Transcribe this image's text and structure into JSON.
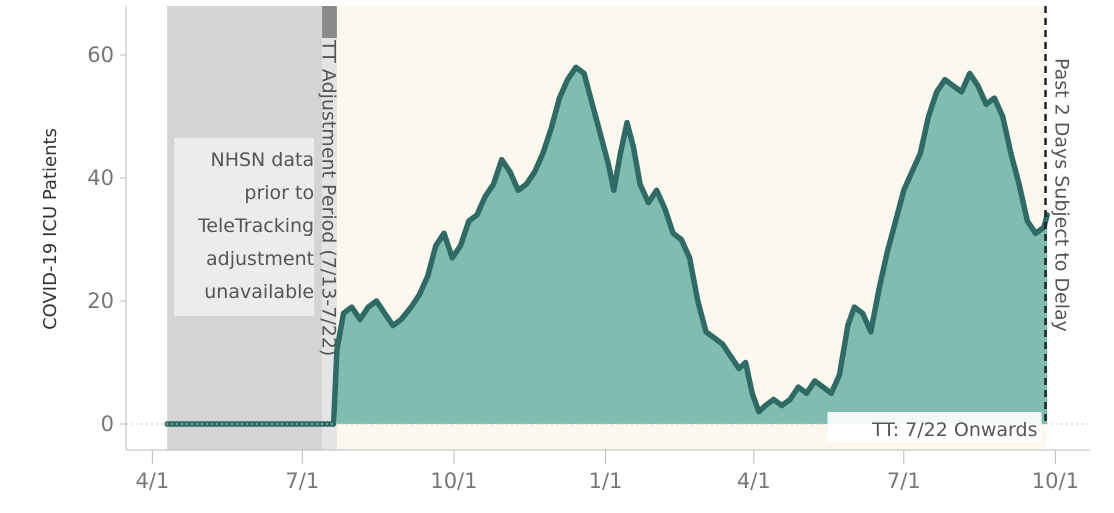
{
  "chart_data": {
    "type": "area",
    "title": "",
    "ylabel": "COVID-19 ICU Patients",
    "xlabel": "",
    "ylim": [
      0,
      65
    ],
    "x_range": [
      "2020-03-16",
      "2021-10-22"
    ],
    "grid": false,
    "y_ticks": [
      0,
      20,
      40,
      60
    ],
    "x_ticks": [
      {
        "date": "2020-04-01",
        "label": "4/1"
      },
      {
        "date": "2020-07-01",
        "label": "7/1"
      },
      {
        "date": "2020-10-01",
        "label": "10/1"
      },
      {
        "date": "2021-01-01",
        "label": "1/1"
      },
      {
        "date": "2021-04-01",
        "label": "4/1"
      },
      {
        "date": "2021-07-01",
        "label": "7/1"
      },
      {
        "date": "2021-10-01",
        "label": "10/1"
      }
    ],
    "regions": [
      {
        "name": "nhsn",
        "start": "2020-04-10",
        "end": "2020-07-13",
        "label_lines": [
          "NHSN data",
          "prior to",
          "TeleTracking",
          "adjustment",
          "unavailable"
        ]
      },
      {
        "name": "adjustment",
        "start": "2020-07-13",
        "end": "2020-07-22",
        "label": "TT Adjustment Period (7/13-7/22)"
      },
      {
        "name": "tt-onwards",
        "start": "2020-07-22",
        "end": "2021-09-25",
        "label": "TT: 7/22 Onwards"
      }
    ],
    "delay_marker": {
      "date": "2021-09-25",
      "label": "Past 2 Days Subject to Delay"
    },
    "series": [
      {
        "kind": "rolling-average",
        "points": [
          [
            "2020-04-10",
            0
          ],
          [
            "2020-07-20",
            0
          ],
          [
            "2020-07-22",
            12
          ],
          [
            "2020-07-26",
            18
          ],
          [
            "2020-07-31",
            19
          ],
          [
            "2020-08-05",
            17
          ],
          [
            "2020-08-10",
            19
          ],
          [
            "2020-08-15",
            20
          ],
          [
            "2020-08-20",
            18
          ],
          [
            "2020-08-25",
            16
          ],
          [
            "2020-08-30",
            17
          ],
          [
            "2020-09-05",
            19
          ],
          [
            "2020-09-10",
            21
          ],
          [
            "2020-09-15",
            24
          ],
          [
            "2020-09-20",
            29
          ],
          [
            "2020-09-25",
            31
          ],
          [
            "2020-09-30",
            27
          ],
          [
            "2020-10-05",
            29
          ],
          [
            "2020-10-10",
            33
          ],
          [
            "2020-10-15",
            34
          ],
          [
            "2020-10-20",
            37
          ],
          [
            "2020-10-25",
            39
          ],
          [
            "2020-10-30",
            43
          ],
          [
            "2020-11-04",
            41
          ],
          [
            "2020-11-09",
            38
          ],
          [
            "2020-11-14",
            39
          ],
          [
            "2020-11-19",
            41
          ],
          [
            "2020-11-24",
            44
          ],
          [
            "2020-11-29",
            48
          ],
          [
            "2020-12-04",
            53
          ],
          [
            "2020-12-09",
            56
          ],
          [
            "2020-12-14",
            58
          ],
          [
            "2020-12-19",
            57
          ],
          [
            "2020-12-24",
            52
          ],
          [
            "2020-12-29",
            47
          ],
          [
            "2021-01-03",
            42
          ],
          [
            "2021-01-06",
            38
          ],
          [
            "2021-01-10",
            44
          ],
          [
            "2021-01-14",
            49
          ],
          [
            "2021-01-18",
            45
          ],
          [
            "2021-01-22",
            39
          ],
          [
            "2021-01-27",
            36
          ],
          [
            "2021-02-01",
            38
          ],
          [
            "2021-02-06",
            35
          ],
          [
            "2021-02-11",
            31
          ],
          [
            "2021-02-16",
            30
          ],
          [
            "2021-02-21",
            27
          ],
          [
            "2021-02-26",
            20
          ],
          [
            "2021-03-03",
            15
          ],
          [
            "2021-03-08",
            14
          ],
          [
            "2021-03-13",
            13
          ],
          [
            "2021-03-18",
            11
          ],
          [
            "2021-03-23",
            9
          ],
          [
            "2021-03-27",
            10
          ],
          [
            "2021-03-31",
            5
          ],
          [
            "2021-04-04",
            2
          ],
          [
            "2021-04-08",
            3
          ],
          [
            "2021-04-13",
            4
          ],
          [
            "2021-04-18",
            3
          ],
          [
            "2021-04-23",
            4
          ],
          [
            "2021-04-28",
            6
          ],
          [
            "2021-05-03",
            5
          ],
          [
            "2021-05-08",
            7
          ],
          [
            "2021-05-13",
            6
          ],
          [
            "2021-05-18",
            5
          ],
          [
            "2021-05-23",
            8
          ],
          [
            "2021-05-28",
            16
          ],
          [
            "2021-06-01",
            19
          ],
          [
            "2021-06-06",
            18
          ],
          [
            "2021-06-11",
            15
          ],
          [
            "2021-06-16",
            22
          ],
          [
            "2021-06-21",
            28
          ],
          [
            "2021-06-26",
            33
          ],
          [
            "2021-07-01",
            38
          ],
          [
            "2021-07-06",
            41
          ],
          [
            "2021-07-11",
            44
          ],
          [
            "2021-07-16",
            50
          ],
          [
            "2021-07-21",
            54
          ],
          [
            "2021-07-26",
            56
          ],
          [
            "2021-07-31",
            55
          ],
          [
            "2021-08-05",
            54
          ],
          [
            "2021-08-10",
            57
          ],
          [
            "2021-08-15",
            55
          ],
          [
            "2021-08-20",
            52
          ],
          [
            "2021-08-25",
            53
          ],
          [
            "2021-08-30",
            50
          ],
          [
            "2021-09-04",
            44
          ],
          [
            "2021-09-09",
            39
          ],
          [
            "2021-09-14",
            33
          ],
          [
            "2021-09-19",
            31
          ],
          [
            "2021-09-24",
            32
          ],
          [
            "2021-09-26",
            34
          ]
        ]
      }
    ],
    "colors": {
      "area": "#7fbdb1",
      "line": "#2e6b66",
      "nhsn_band": "#d4d4d4",
      "adjustment_band": "#e4e4e4",
      "tt_band": "#fdf8ee",
      "axis": "#bbbbbb",
      "marker": "#222222"
    }
  }
}
